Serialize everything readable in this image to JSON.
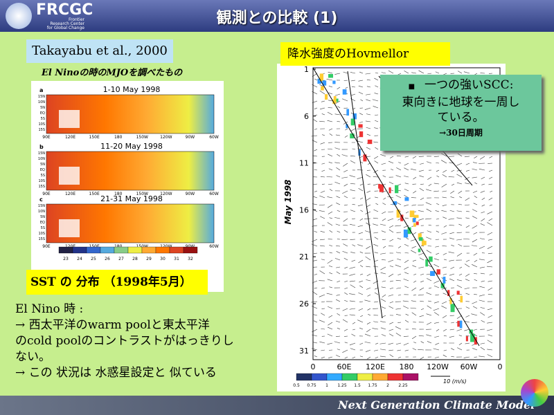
{
  "header": {
    "logo": "FRCGC",
    "logo_sub": [
      "Frontier",
      "Research Center",
      "for Global Change"
    ],
    "title": "観測との比較 (1)"
  },
  "left": {
    "citation": "Takayabu et al., 2000",
    "subtitle": "El Ninoの時のMJOを調べたもの",
    "figure": {
      "panels": [
        {
          "letter": "a",
          "title": "1-10 May 1998"
        },
        {
          "letter": "b",
          "title": "11-20 May 1998"
        },
        {
          "letter": "c",
          "title": "21-31 May 1998"
        }
      ],
      "lat_labels": [
        "15N",
        "10N",
        "5N",
        "EQ",
        "5S",
        "10S",
        "15S"
      ],
      "lon_labels": [
        "90E",
        "120E",
        "150E",
        "180",
        "150W",
        "120W",
        "90W",
        "60W"
      ],
      "colorbar_labels": [
        "23",
        "24",
        "25",
        "26",
        "27",
        "28",
        "29",
        "30",
        "31",
        "32"
      ]
    },
    "caption": "SST の 分布 （1998年5月）",
    "text": [
      "El Nino 時 :",
      "→ 西太平洋のwarm poolと東太平洋",
      "のcold poolのコントラストがはっきりし",
      "ない。",
      "→ この 状況は 水惑星設定と 似ている"
    ]
  },
  "right": {
    "label": "降水強度のHovmellor",
    "figure": {
      "y_label": "May 1998",
      "y_ticks": [
        "1",
        "6",
        "11",
        "16",
        "21",
        "26",
        "31"
      ],
      "x_ticks": [
        "0",
        "60E",
        "120E",
        "180",
        "120W",
        "60W",
        "0"
      ],
      "colorbar_labels": [
        "0.5",
        "0.75",
        "1",
        "1.25",
        "1.5",
        "1.75",
        "2",
        "2.25"
      ],
      "vector_label": "10 (m/s)"
    },
    "callout": [
      "一つの強いSCC:",
      "東向きに地球を一周し",
      "ている。",
      "→30日周期"
    ]
  },
  "footer": {
    "text": "Next Generation Climate Model"
  }
}
